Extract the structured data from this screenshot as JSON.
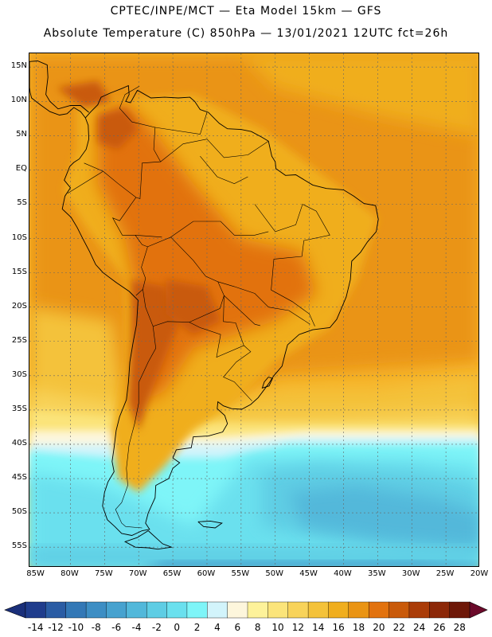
{
  "header": {
    "title_line1": "CPTEC/INPE/MCT —  Eta Model 15km — GFS",
    "title_line2": "Absolute Temperature (C) 850hPa — 13/01/2021 12UTC fct=26h"
  },
  "map": {
    "lat_ticks": [
      "15N",
      "10N",
      "5N",
      "EQ",
      "5S",
      "10S",
      "15S",
      "20S",
      "25S",
      "30S",
      "35S",
      "40S",
      "45S",
      "50S",
      "55S"
    ],
    "lon_ticks": [
      "85W",
      "80W",
      "75W",
      "70W",
      "65W",
      "60W",
      "55W",
      "50W",
      "45W",
      "40W",
      "35W",
      "30W",
      "25W",
      "20W"
    ],
    "lat_values": [
      15,
      10,
      5,
      0,
      -5,
      -10,
      -15,
      -20,
      -25,
      -30,
      -35,
      -40,
      -45,
      -50,
      -55
    ],
    "lon_values": [
      -85,
      -80,
      -75,
      -70,
      -65,
      -60,
      -55,
      -50,
      -45,
      -40,
      -35,
      -30,
      -25,
      -20
    ],
    "lon_range": [
      -86,
      -20
    ],
    "lat_range": [
      -58,
      17
    ],
    "gridlines": "dashed",
    "land_background_color": "#f0a818",
    "ocean_background_color": "#f6b42a"
  },
  "colorbar": {
    "labels": [
      "-14",
      "-12",
      "-10",
      "-8",
      "-6",
      "-4",
      "-2",
      "0",
      "2",
      "4",
      "6",
      "8",
      "10",
      "12",
      "14",
      "16",
      "18",
      "20",
      "22",
      "24",
      "26",
      "28"
    ],
    "colors": [
      "#1f3c8c",
      "#2a5ca4",
      "#3378b6",
      "#3d8ec4",
      "#47a2cf",
      "#52b8da",
      "#5ecde4",
      "#6ae0ee",
      "#7ef5f8",
      "#d2f4fb",
      "#fdf6dc",
      "#fdf29a",
      "#fbe47a",
      "#f8d35a",
      "#f4c23a",
      "#f0ae1e",
      "#ea9414",
      "#e2720e",
      "#c95a0a",
      "#aa3c08",
      "#8c2808",
      "#6e1808"
    ],
    "low_end_color": "#1a2f7a",
    "high_end_color": "#6b0a2a"
  }
}
